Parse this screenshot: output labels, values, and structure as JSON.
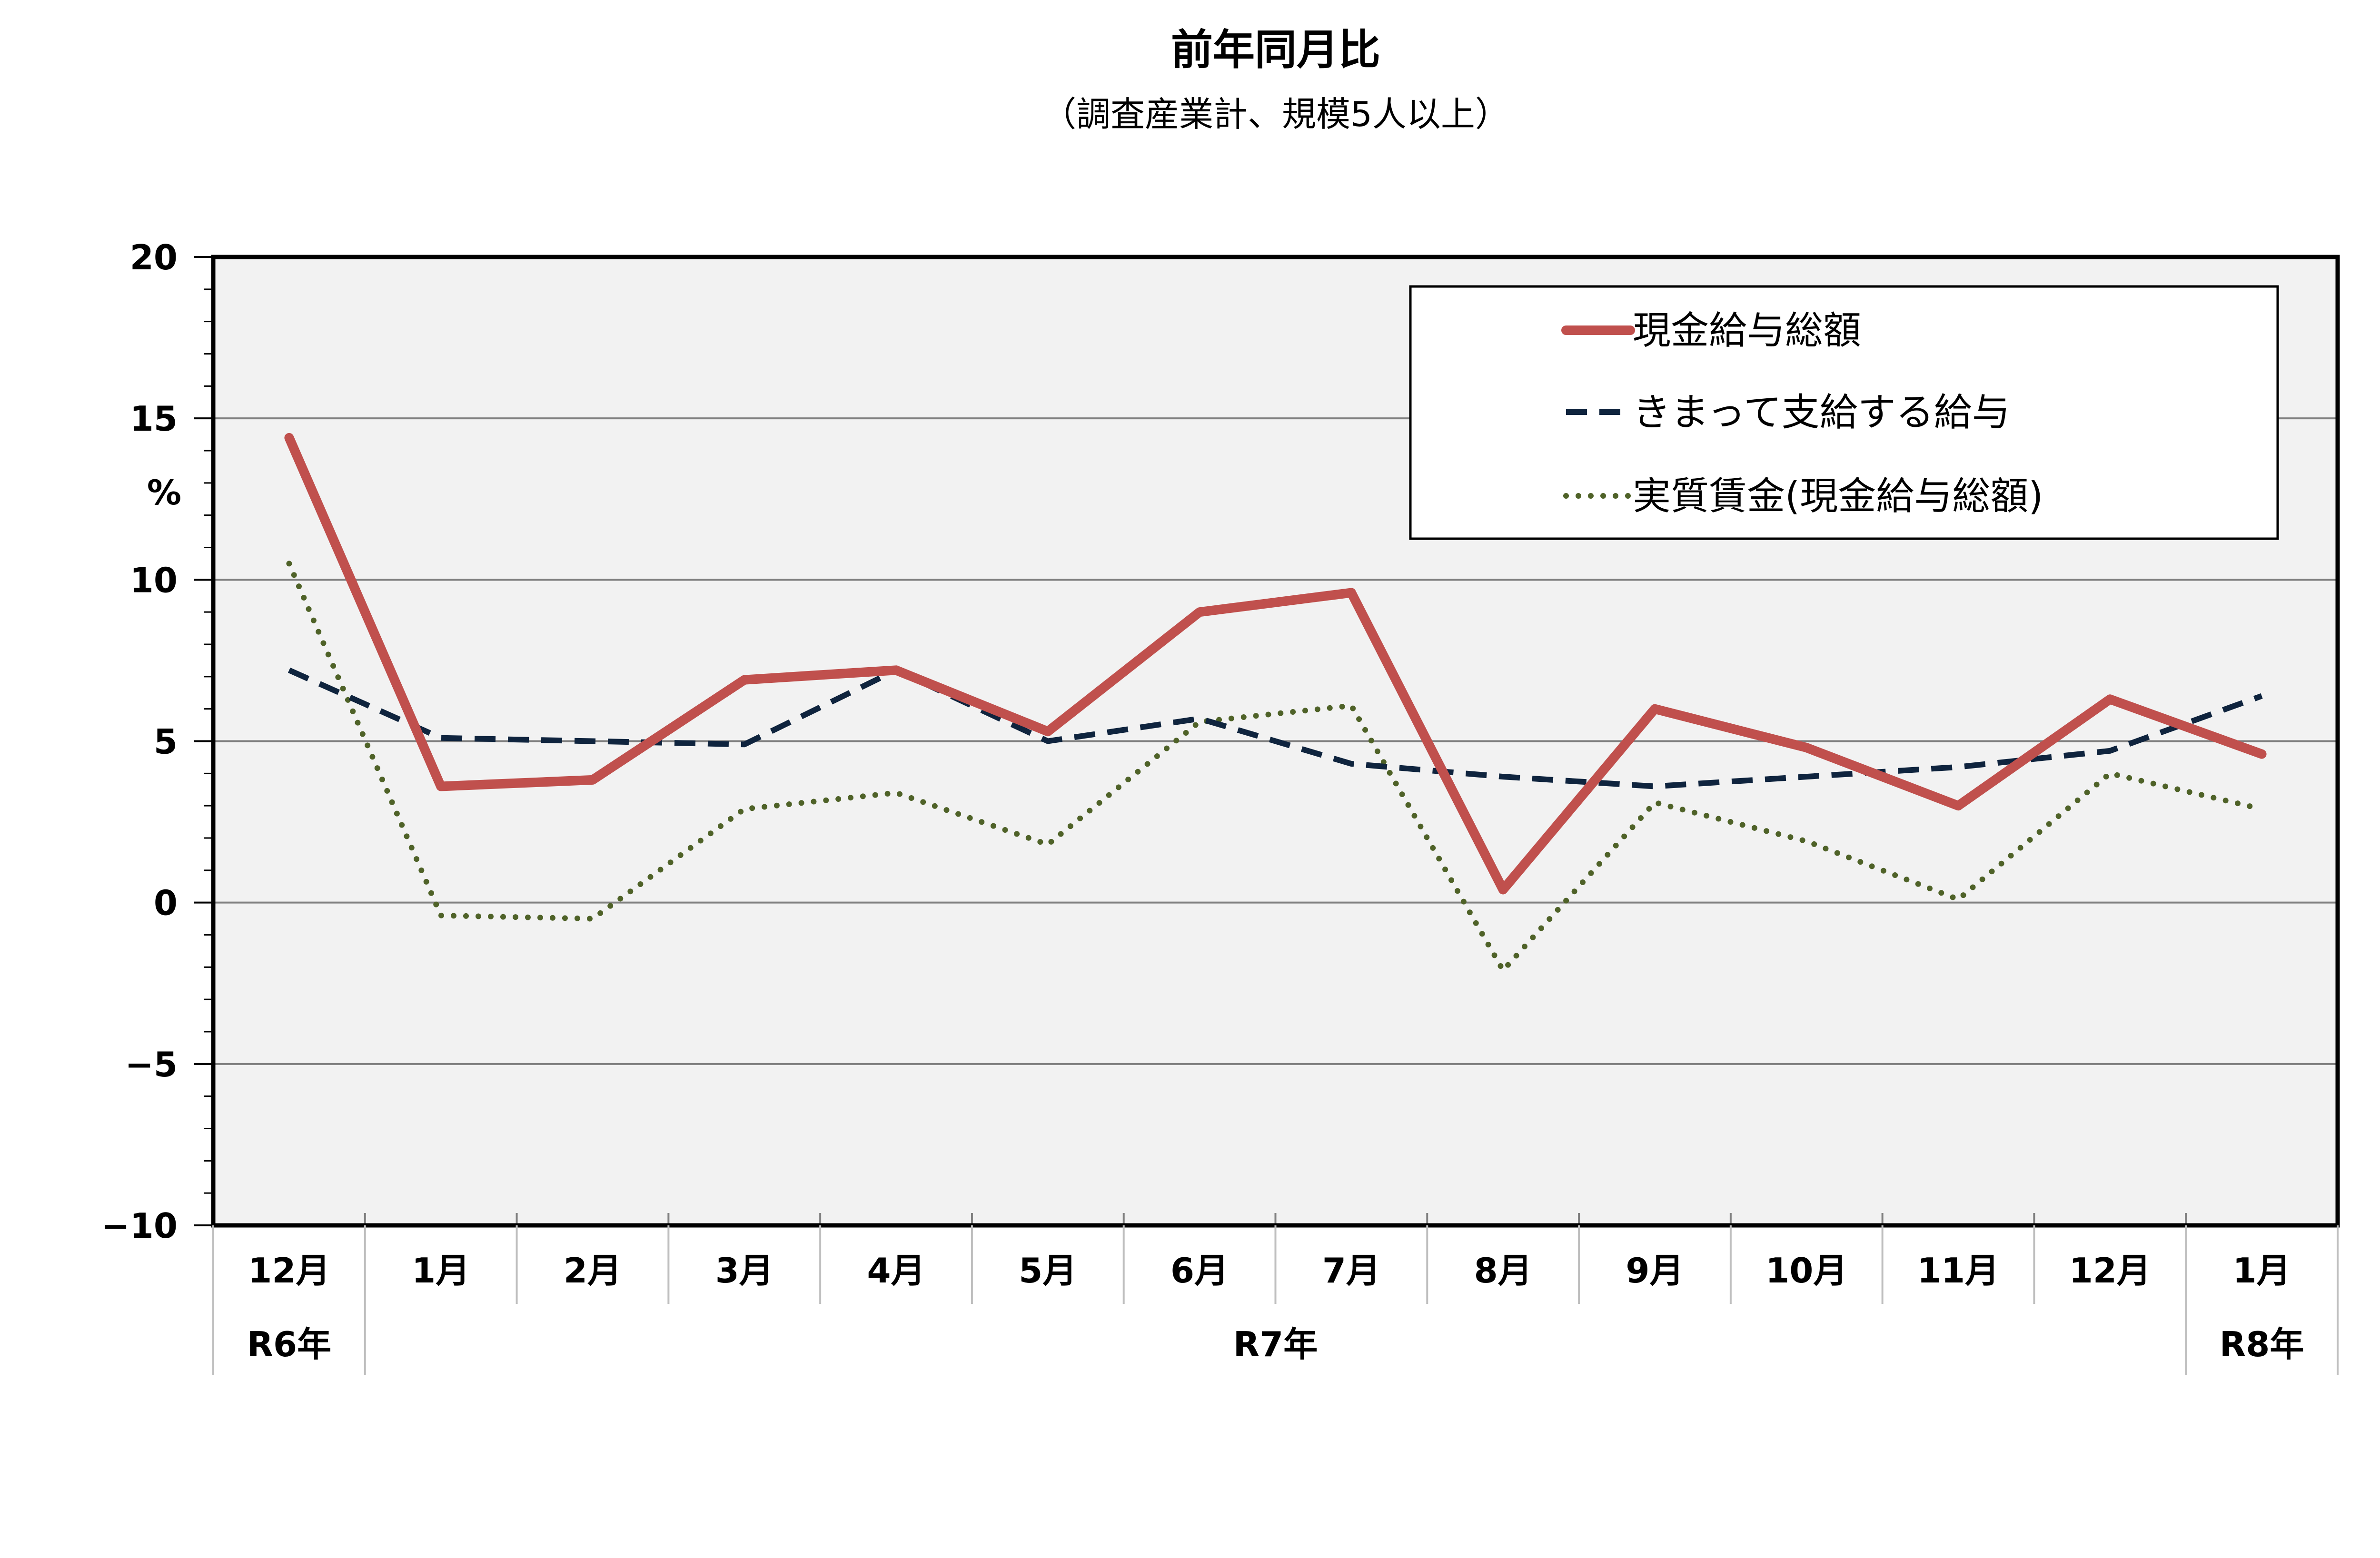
{
  "chart_data": {
    "type": "line",
    "title": "前年同月比",
    "subtitle": "（調査産業計、規模5人以上）",
    "ylabel": "%",
    "ylim": [
      -10,
      20
    ],
    "yticks": [
      "20",
      "15",
      "10",
      "5",
      "0",
      "−5",
      "−10"
    ],
    "grid": true,
    "legend_position": "top-right",
    "categories": [
      "12月",
      "1月",
      "2月",
      "3月",
      "4月",
      "5月",
      "6月",
      "7月",
      "8月",
      "9月",
      "10月",
      "11月",
      "12月",
      "1月"
    ],
    "year_groups": [
      {
        "label": "R6年",
        "start": 0,
        "end": 0
      },
      {
        "label": "R7年",
        "start": 1,
        "end": 12
      },
      {
        "label": "R8年",
        "start": 13,
        "end": 13
      }
    ],
    "series": [
      {
        "name": "現金給与総額",
        "style": "solid",
        "color": "#c0504d",
        "values": [
          14.4,
          3.6,
          3.8,
          6.9,
          7.2,
          5.3,
          9.0,
          9.6,
          0.4,
          6.0,
          4.8,
          3.0,
          6.3,
          4.6
        ]
      },
      {
        "name": "きまって支給する給与",
        "style": "dashed",
        "color": "#0f243e",
        "values": [
          7.2,
          5.1,
          5.0,
          4.9,
          7.2,
          5.0,
          5.7,
          4.3,
          3.9,
          3.6,
          3.9,
          4.2,
          4.7,
          6.4
        ]
      },
      {
        "name": "実質賃金(現金給与総額)",
        "style": "dotted",
        "color": "#4f6228",
        "values": [
          10.5,
          -0.4,
          -0.5,
          2.9,
          3.4,
          1.8,
          5.6,
          6.1,
          -2.1,
          3.1,
          1.9,
          0.1,
          4.0,
          2.9
        ]
      }
    ]
  }
}
